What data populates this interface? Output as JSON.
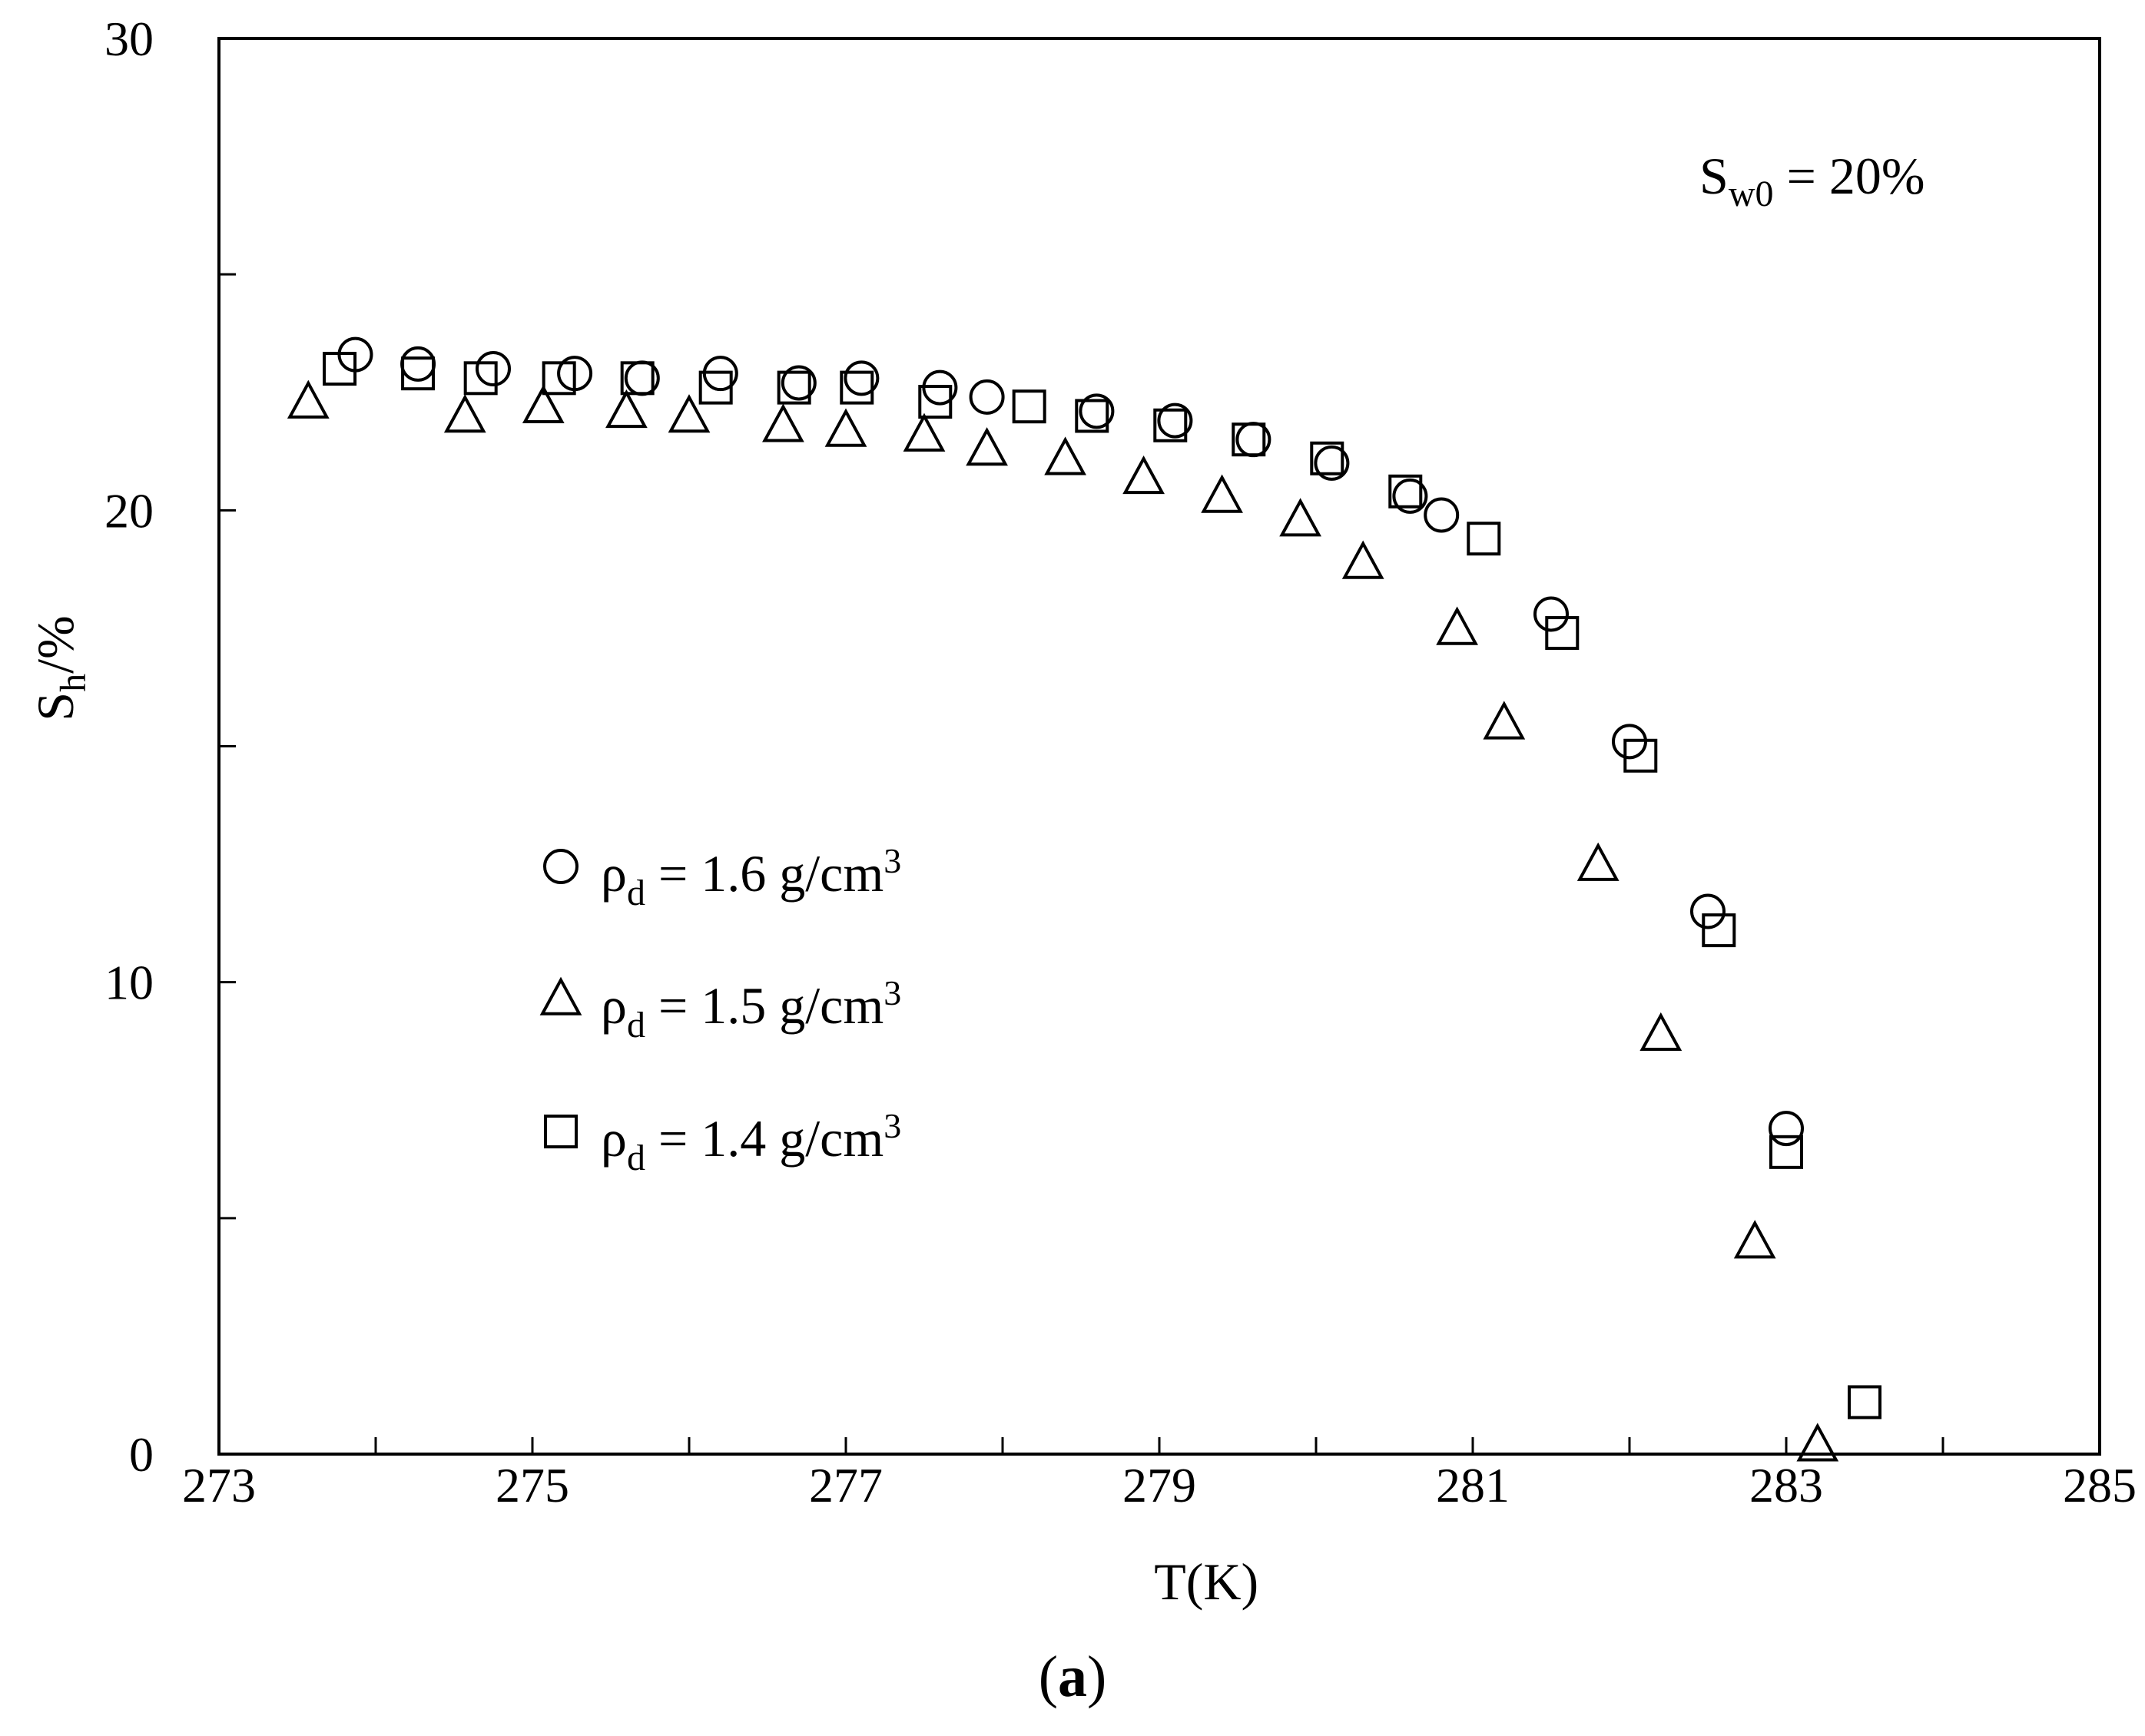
{
  "chart_data": {
    "type": "scatter",
    "xlabel": "T(K)",
    "ylabel": "S_h/%",
    "xlim": [
      273,
      285
    ],
    "ylim": [
      0,
      30
    ],
    "x_ticks": [
      273,
      274,
      275,
      276,
      277,
      278,
      279,
      280,
      281,
      282,
      283,
      284,
      285
    ],
    "x_tick_labels": [
      "273",
      "275",
      "277",
      "279",
      "281",
      "283",
      "285"
    ],
    "x_tick_label_values": [
      273,
      275,
      277,
      279,
      281,
      283,
      285
    ],
    "y_ticks": [
      0,
      5,
      10,
      15,
      20,
      25,
      30
    ],
    "y_tick_labels": [
      "0",
      "10",
      "20",
      "30"
    ],
    "y_tick_label_values": [
      0,
      10,
      20,
      30
    ],
    "grid": false,
    "legend_position": "center-left",
    "annotation": {
      "main": "S",
      "sub": "w0",
      "rest": " = 20%"
    },
    "series": [
      {
        "name": "ρd = 1.6 g/cm3",
        "legend": {
          "main": "ρ",
          "sub": "d",
          "rest": " = 1.6 g/cm",
          "sup": "3"
        },
        "marker": "circle",
        "points": [
          [
            273.87,
            23.3
          ],
          [
            274.27,
            23.1
          ],
          [
            274.75,
            23.0
          ],
          [
            275.27,
            22.9
          ],
          [
            275.7,
            22.8
          ],
          [
            276.2,
            22.9
          ],
          [
            276.7,
            22.7
          ],
          [
            277.1,
            22.8
          ],
          [
            277.6,
            22.6
          ],
          [
            277.9,
            22.4
          ],
          [
            278.6,
            22.1
          ],
          [
            279.1,
            21.9
          ],
          [
            279.6,
            21.5
          ],
          [
            280.1,
            21.0
          ],
          [
            280.6,
            20.3
          ],
          [
            280.8,
            19.9
          ],
          [
            281.5,
            17.8
          ],
          [
            282.0,
            15.1
          ],
          [
            282.5,
            11.5
          ],
          [
            283.0,
            6.9
          ]
        ]
      },
      {
        "name": "ρd = 1.5 g/cm3",
        "legend": {
          "main": "ρ",
          "sub": "d",
          "rest": " = 1.5 g/cm",
          "sup": "3"
        },
        "marker": "triangle",
        "points": [
          [
            273.57,
            22.3
          ],
          [
            274.57,
            22.0
          ],
          [
            275.07,
            22.2
          ],
          [
            275.6,
            22.1
          ],
          [
            276.0,
            22.0
          ],
          [
            276.6,
            21.8
          ],
          [
            277.0,
            21.7
          ],
          [
            277.5,
            21.6
          ],
          [
            277.9,
            21.3
          ],
          [
            278.4,
            21.1
          ],
          [
            278.9,
            20.7
          ],
          [
            279.4,
            20.3
          ],
          [
            279.9,
            19.8
          ],
          [
            280.3,
            18.9
          ],
          [
            280.9,
            17.5
          ],
          [
            281.2,
            15.5
          ],
          [
            281.8,
            12.5
          ],
          [
            282.2,
            8.9
          ],
          [
            282.8,
            4.5
          ],
          [
            283.2,
            0.2
          ]
        ]
      },
      {
        "name": "ρd = 1.4 g/cm3",
        "legend": {
          "main": "ρ",
          "sub": "d",
          "rest": " = 1.4 g/cm",
          "sup": "3"
        },
        "marker": "square",
        "points": [
          [
            273.77,
            23.0
          ],
          [
            274.27,
            22.9
          ],
          [
            274.67,
            22.8
          ],
          [
            275.17,
            22.8
          ],
          [
            275.67,
            22.8
          ],
          [
            276.17,
            22.6
          ],
          [
            276.67,
            22.6
          ],
          [
            277.07,
            22.6
          ],
          [
            277.57,
            22.3
          ],
          [
            278.17,
            22.2
          ],
          [
            278.57,
            22.0
          ],
          [
            279.07,
            21.8
          ],
          [
            279.57,
            21.5
          ],
          [
            280.07,
            21.1
          ],
          [
            280.57,
            20.4
          ],
          [
            281.07,
            19.4
          ],
          [
            281.57,
            17.4
          ],
          [
            282.07,
            14.8
          ],
          [
            282.57,
            11.1
          ],
          [
            283.0,
            6.4
          ],
          [
            283.5,
            1.1
          ]
        ]
      }
    ]
  },
  "caption": {
    "open": "(",
    "letter": "a",
    "close": ")"
  }
}
